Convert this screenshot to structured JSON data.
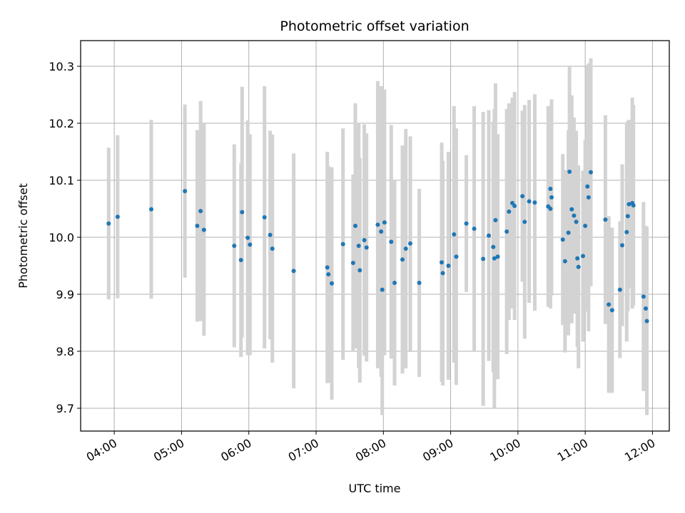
{
  "chart_data": {
    "type": "scatter",
    "title": "Photometric offset variation",
    "xlabel": "UTC time",
    "ylabel": "Photometric offset",
    "xlim": [
      "03:30",
      "12:15"
    ],
    "ylim": [
      9.66,
      10.345
    ],
    "grid": true,
    "x_ticks": [
      "04:00",
      "05:00",
      "06:00",
      "07:00",
      "08:00",
      "09:00",
      "10:00",
      "11:00",
      "12:00"
    ],
    "y_ticks": [
      9.7,
      9.8,
      9.9,
      10.0,
      10.1,
      10.2,
      10.3
    ],
    "colors": {
      "points": "#1f77b4",
      "error_bars": "#d3d3d3",
      "grid": "#b0b0b0"
    },
    "series": [
      {
        "points": [
          {
            "x": "03:55",
            "y": 10.024,
            "err": 0.133
          },
          {
            "x": "04:03",
            "y": 10.036,
            "err": 0.143
          },
          {
            "x": "04:33",
            "y": 10.049,
            "err": 0.157
          },
          {
            "x": "05:03",
            "y": 10.081,
            "err": 0.152
          },
          {
            "x": "05:14",
            "y": 10.02,
            "err": 0.168
          },
          {
            "x": "05:17",
            "y": 10.046,
            "err": 0.193
          },
          {
            "x": "05:20",
            "y": 10.013,
            "err": 0.186
          },
          {
            "x": "05:47",
            "y": 9.985,
            "err": 0.178
          },
          {
            "x": "05:53",
            "y": 9.96,
            "err": 0.17
          },
          {
            "x": "05:54",
            "y": 10.044,
            "err": 0.22
          },
          {
            "x": "05:59",
            "y": 9.999,
            "err": 0.206
          },
          {
            "x": "06:01",
            "y": 9.987,
            "err": 0.194
          },
          {
            "x": "06:14",
            "y": 10.035,
            "err": 0.23
          },
          {
            "x": "06:19",
            "y": 10.004,
            "err": 0.183
          },
          {
            "x": "06:21",
            "y": 9.98,
            "err": 0.2
          },
          {
            "x": "06:40",
            "y": 9.941,
            "err": 0.206
          },
          {
            "x": "07:10",
            "y": 9.947,
            "err": 0.203
          },
          {
            "x": "07:11",
            "y": 9.935,
            "err": 0.19
          },
          {
            "x": "07:14",
            "y": 9.919,
            "err": 0.204
          },
          {
            "x": "07:24",
            "y": 9.988,
            "err": 0.203
          },
          {
            "x": "07:33",
            "y": 9.955,
            "err": 0.155
          },
          {
            "x": "07:35",
            "y": 10.02,
            "err": 0.215
          },
          {
            "x": "07:38",
            "y": 9.985,
            "err": 0.215
          },
          {
            "x": "07:39",
            "y": 9.942,
            "err": 0.197
          },
          {
            "x": "07:43",
            "y": 9.995,
            "err": 0.203
          },
          {
            "x": "07:45",
            "y": 9.982,
            "err": 0.2
          },
          {
            "x": "07:55",
            "y": 10.022,
            "err": 0.252
          },
          {
            "x": "07:58",
            "y": 10.01,
            "err": 0.255
          },
          {
            "x": "07:59",
            "y": 9.908,
            "err": 0.22
          },
          {
            "x": "08:01",
            "y": 10.026,
            "err": 0.233
          },
          {
            "x": "08:07",
            "y": 9.992,
            "err": 0.205
          },
          {
            "x": "08:10",
            "y": 9.92,
            "err": 0.18
          },
          {
            "x": "08:17",
            "y": 9.961,
            "err": 0.2
          },
          {
            "x": "08:20",
            "y": 9.98,
            "err": 0.21
          },
          {
            "x": "08:24",
            "y": 9.989,
            "err": 0.188
          },
          {
            "x": "08:32",
            "y": 9.92,
            "err": 0.165
          },
          {
            "x": "08:52",
            "y": 9.956,
            "err": 0.21
          },
          {
            "x": "08:53",
            "y": 9.937,
            "err": 0.197
          },
          {
            "x": "08:58",
            "y": 9.95,
            "err": 0.2
          },
          {
            "x": "09:03",
            "y": 10.005,
            "err": 0.225
          },
          {
            "x": "09:05",
            "y": 9.966,
            "err": 0.225
          },
          {
            "x": "09:14",
            "y": 10.024,
            "err": 0.12
          },
          {
            "x": "09:21",
            "y": 10.015,
            "err": 0.215
          },
          {
            "x": "09:29",
            "y": 9.962,
            "err": 0.258
          },
          {
            "x": "09:34",
            "y": 10.003,
            "err": 0.22
          },
          {
            "x": "09:38",
            "y": 9.983,
            "err": 0.22
          },
          {
            "x": "09:39",
            "y": 9.963,
            "err": 0.262
          },
          {
            "x": "09:40",
            "y": 10.03,
            "err": 0.24
          },
          {
            "x": "09:42",
            "y": 9.966,
            "err": 0.215
          },
          {
            "x": "09:50",
            "y": 10.01,
            "err": 0.215
          },
          {
            "x": "09:52",
            "y": 10.045,
            "err": 0.19
          },
          {
            "x": "09:55",
            "y": 10.06,
            "err": 0.185
          },
          {
            "x": "09:57",
            "y": 10.055,
            "err": 0.2
          },
          {
            "x": "10:04",
            "y": 10.072,
            "err": 0.15
          },
          {
            "x": "10:06",
            "y": 10.027,
            "err": 0.205
          },
          {
            "x": "10:10",
            "y": 10.063,
            "err": 0.178
          },
          {
            "x": "10:15",
            "y": 10.061,
            "err": 0.19
          },
          {
            "x": "10:27",
            "y": 10.054,
            "err": 0.176
          },
          {
            "x": "10:29",
            "y": 10.05,
            "err": 0.175
          },
          {
            "x": "10:29",
            "y": 10.085,
            "err": 0.145
          },
          {
            "x": "10:30",
            "y": 10.07,
            "err": 0.172
          },
          {
            "x": "10:40",
            "y": 9.996,
            "err": 0.15
          },
          {
            "x": "10:42",
            "y": 9.958,
            "err": 0.16
          },
          {
            "x": "10:45",
            "y": 10.008,
            "err": 0.18
          },
          {
            "x": "10:46",
            "y": 10.115,
            "err": 0.185
          },
          {
            "x": "10:48",
            "y": 10.049,
            "err": 0.2
          },
          {
            "x": "10:50",
            "y": 10.038,
            "err": 0.172
          },
          {
            "x": "10:52",
            "y": 10.027,
            "err": 0.16
          },
          {
            "x": "10:53",
            "y": 9.963,
            "err": 0.155
          },
          {
            "x": "10:54",
            "y": 9.948,
            "err": 0.178
          },
          {
            "x": "10:58",
            "y": 9.967,
            "err": 0.15
          },
          {
            "x": "11:00",
            "y": 10.02,
            "err": 0.15
          },
          {
            "x": "11:02",
            "y": 10.089,
            "err": 0.21
          },
          {
            "x": "11:03",
            "y": 10.07,
            "err": 0.235
          },
          {
            "x": "11:05",
            "y": 10.114,
            "err": 0.2
          },
          {
            "x": "11:18",
            "y": 10.031,
            "err": 0.183
          },
          {
            "x": "11:21",
            "y": 9.882,
            "err": 0.155
          },
          {
            "x": "11:24",
            "y": 9.872,
            "err": 0.145
          },
          {
            "x": "11:31",
            "y": 9.908,
            "err": 0.12
          },
          {
            "x": "11:33",
            "y": 9.986,
            "err": 0.142
          },
          {
            "x": "11:37",
            "y": 10.009,
            "err": 0.192
          },
          {
            "x": "11:38",
            "y": 10.037,
            "err": 0.167
          },
          {
            "x": "11:39",
            "y": 10.058,
            "err": 0.148
          },
          {
            "x": "11:42",
            "y": 10.06,
            "err": 0.185
          },
          {
            "x": "11:43",
            "y": 10.056,
            "err": 0.176
          },
          {
            "x": "11:52",
            "y": 9.896,
            "err": 0.166
          },
          {
            "x": "11:54",
            "y": 9.875,
            "err": 0.145
          },
          {
            "x": "11:55",
            "y": 9.853,
            "err": 0.165
          }
        ]
      }
    ]
  }
}
